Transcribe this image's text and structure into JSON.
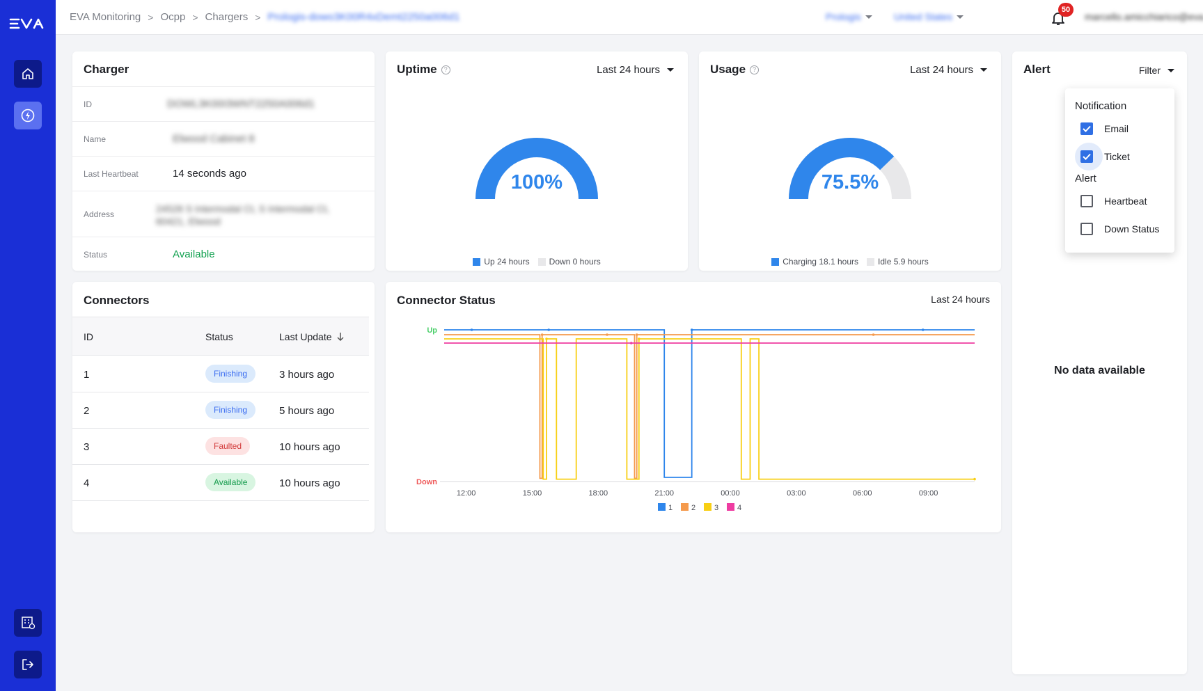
{
  "breadcrumb": {
    "items": [
      "EVA Monitoring",
      "Ocpp",
      "Chargers"
    ],
    "current": "Prologis-dowo3K00R4xDemt2250a006d1"
  },
  "topbar": {
    "org_select": "Prologis",
    "country_select": "United States",
    "notification_count": "50",
    "user_email": "marcello.amicchiarico@eva.global"
  },
  "charger": {
    "title": "Charger",
    "rows": [
      {
        "label": "ID",
        "value": "DOWL3K00I3WNT2250A006d1"
      },
      {
        "label": "Name",
        "value": "Elwood Cabinet 8"
      },
      {
        "label": "Last Heartbeat",
        "value": "14 seconds ago"
      },
      {
        "label": "Address",
        "value": "24528 S Intermodal Ct, S Intermodal Ct, 60421, Elwood"
      },
      {
        "label": "Status",
        "value": "Available"
      }
    ]
  },
  "uptime": {
    "title": "Uptime",
    "help": "?",
    "period": "Last 24 hours",
    "value_label": "100%",
    "fraction": 1.0,
    "legend": [
      "Up 24 hours",
      "Down 0 hours"
    ]
  },
  "usage": {
    "title": "Usage",
    "help": "?",
    "period": "Last 24 hours",
    "value_label": "75.5%",
    "fraction": 0.755,
    "legend": [
      "Charging 18.1 hours",
      "Idle 5.9 hours"
    ]
  },
  "alert": {
    "title": "Alert",
    "filter_label": "Filter",
    "no_data": "No data available",
    "filter_menu": {
      "notification_header": "Notification",
      "notification_items": [
        {
          "label": "Email",
          "checked": true
        },
        {
          "label": "Ticket",
          "checked": true
        }
      ],
      "alert_header": "Alert",
      "alert_items": [
        {
          "label": "Heartbeat",
          "checked": false
        },
        {
          "label": "Down Status",
          "checked": false
        }
      ]
    }
  },
  "connectors": {
    "title": "Connectors",
    "columns": [
      "ID",
      "Status",
      "Last Update"
    ],
    "rows": [
      {
        "id": "1",
        "status": "Finishing",
        "updated": "3 hours ago"
      },
      {
        "id": "2",
        "status": "Finishing",
        "updated": "5 hours ago"
      },
      {
        "id": "3",
        "status": "Faulted",
        "updated": "10 hours ago"
      },
      {
        "id": "4",
        "status": "Available",
        "updated": "10 hours ago"
      }
    ]
  },
  "connector_status": {
    "title": "Connector Status",
    "period": "Last 24 hours"
  },
  "colors": {
    "brand": "#1a2fd6",
    "accent": "#2f86eb",
    "idle": "#e8e8ea",
    "up_label": "#4ccf6b",
    "down_label": "#ef5a5a"
  },
  "chart_data": {
    "type": "line",
    "title": "Connector Status",
    "y_categories": [
      "Down",
      "Up"
    ],
    "x_ticks": [
      "12:00",
      "15:00",
      "18:00",
      "21:00",
      "00:00",
      "03:00",
      "06:00",
      "09:00"
    ],
    "x_range_hours": [
      11,
      35.1
    ],
    "legend_position": "bottom",
    "series": [
      {
        "name": "1",
        "color": "#2f86eb",
        "segments": [
          [
            11,
            1
          ],
          [
            21,
            1
          ],
          [
            21,
            0
          ],
          [
            22.25,
            0
          ],
          [
            22.25,
            1
          ],
          [
            35.1,
            1
          ]
        ],
        "markers": [
          12.25,
          15.75,
          22.25,
          32.75
        ]
      },
      {
        "name": "2",
        "color": "#f59a4c",
        "segments": [
          [
            11,
            1
          ],
          [
            15.35,
            1
          ],
          [
            15.35,
            0
          ],
          [
            15.45,
            0
          ],
          [
            15.45,
            1
          ],
          [
            19.65,
            1
          ],
          [
            19.65,
            0
          ],
          [
            19.75,
            0
          ],
          [
            19.75,
            1
          ],
          [
            35.1,
            1
          ]
        ],
        "markers": [
          15.45,
          18.4,
          19.75,
          30.5
        ]
      },
      {
        "name": "3",
        "color": "#f8cf14",
        "segments": [
          [
            11,
            1
          ],
          [
            15.5,
            1
          ],
          [
            15.5,
            0
          ],
          [
            15.65,
            0
          ],
          [
            15.65,
            1
          ],
          [
            16.1,
            1
          ],
          [
            16.1,
            0
          ],
          [
            17.0,
            0
          ],
          [
            17.0,
            1
          ],
          [
            19.3,
            1
          ],
          [
            19.3,
            0
          ],
          [
            19.85,
            0
          ],
          [
            19.85,
            1
          ],
          [
            24.5,
            1
          ],
          [
            24.5,
            0
          ],
          [
            24.9,
            0
          ],
          [
            24.9,
            1
          ],
          [
            25.3,
            1
          ],
          [
            25.3,
            0
          ],
          [
            35.1,
            0
          ]
        ],
        "markers": [
          15.65,
          19.85,
          35.1
        ]
      },
      {
        "name": "4",
        "color": "#ee3ca1",
        "segments": [
          [
            11,
            1
          ],
          [
            35.1,
            1
          ]
        ],
        "markers": [
          19.5
        ]
      }
    ]
  }
}
